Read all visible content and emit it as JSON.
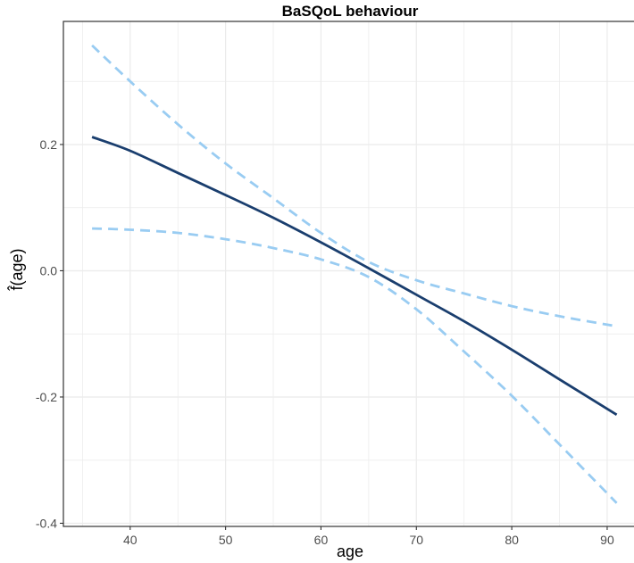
{
  "chart_data": {
    "type": "line",
    "title": "BaSQoL behaviour",
    "xlabel": "age",
    "ylabel": "f̂(age)",
    "xlim": [
      33,
      93
    ],
    "ylim": [
      -0.405,
      0.395
    ],
    "x_ticks": [
      40,
      50,
      60,
      70,
      80,
      90
    ],
    "x_tick_labels": [
      "40",
      "50",
      "60",
      "70",
      "80",
      "90"
    ],
    "y_ticks": [
      -0.4,
      -0.2,
      0.0,
      0.2
    ],
    "y_tick_labels": [
      "-0.4",
      "-0.2",
      "0.0",
      "0.2"
    ],
    "grid": true,
    "legend": "none",
    "colors": {
      "estimate": "#1a3e6e",
      "ci": "#99ccf2",
      "grid": "#ebebeb",
      "panel_border": "#333333"
    },
    "series": [
      {
        "role": "estimate",
        "style": "solid",
        "x": [
          36,
          40,
          45,
          50,
          55,
          60,
          65,
          70,
          75,
          80,
          85,
          91
        ],
        "y": [
          0.212,
          0.19,
          0.155,
          0.12,
          0.084,
          0.045,
          0.004,
          -0.038,
          -0.08,
          -0.125,
          -0.172,
          -0.228
        ]
      },
      {
        "role": "upper",
        "style": "dashed",
        "x": [
          36,
          40,
          45,
          50,
          55,
          60,
          65,
          70,
          75,
          80,
          85,
          91
        ],
        "y": [
          0.357,
          0.3,
          0.232,
          0.17,
          0.115,
          0.06,
          0.014,
          -0.015,
          -0.036,
          -0.056,
          -0.072,
          -0.088
        ]
      },
      {
        "role": "lower",
        "style": "dashed",
        "x": [
          36,
          40,
          45,
          50,
          55,
          60,
          65,
          70,
          75,
          80,
          85,
          91
        ],
        "y": [
          0.067,
          0.065,
          0.06,
          0.05,
          0.036,
          0.018,
          -0.01,
          -0.061,
          -0.128,
          -0.198,
          -0.275,
          -0.368
        ]
      }
    ]
  }
}
